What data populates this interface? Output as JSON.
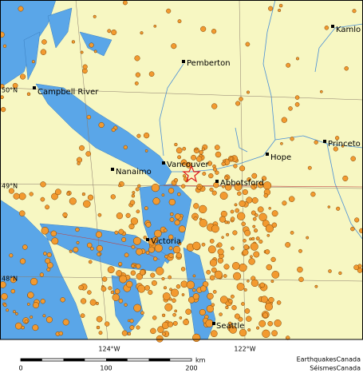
{
  "map": {
    "cities": [
      "Kamlo",
      "Pemberton",
      "Campbell River",
      "Princeto",
      "Hope",
      "Vancouver",
      "Nanaimo",
      "Abbotsford",
      "Victoria",
      "Seattle"
    ],
    "latitude_labels": [
      "50°N",
      "49°N",
      "48°N"
    ],
    "longitude_labels": [
      "124°W",
      "122°W"
    ],
    "scale": {
      "ticks": [
        0,
        100,
        200
      ],
      "unit": "km"
    },
    "credits": [
      "EarthquakesCanada",
      "SéismesCanada"
    ]
  }
}
